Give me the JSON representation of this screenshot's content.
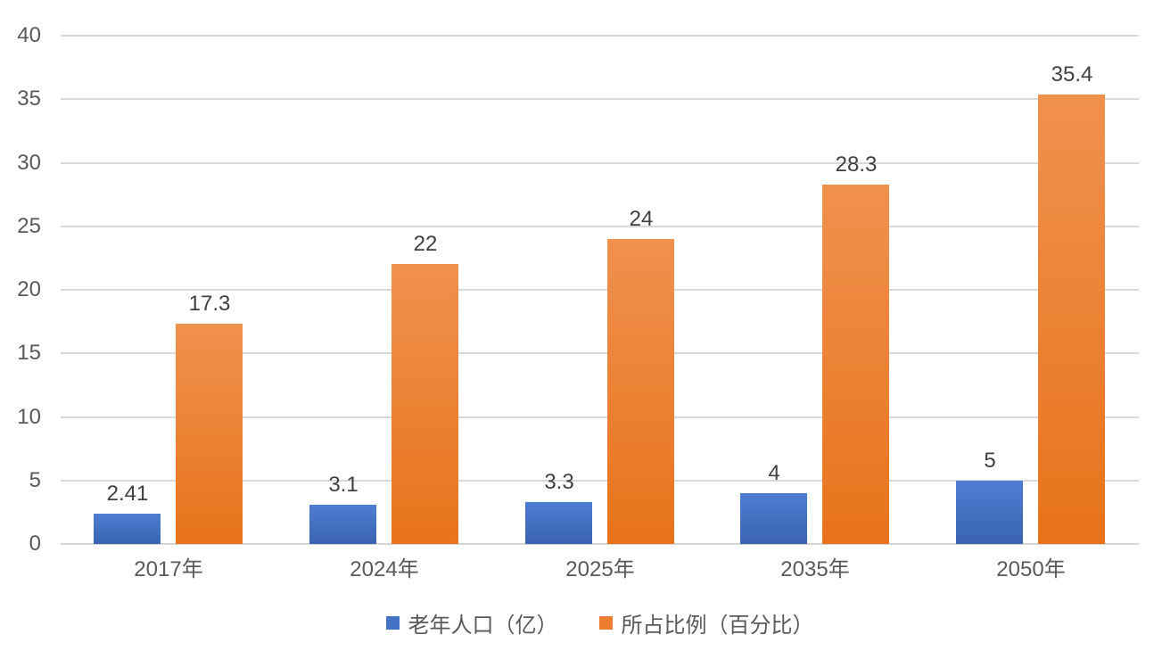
{
  "chart_data": {
    "type": "bar",
    "title": "",
    "xlabel": "",
    "ylabel": "",
    "categories": [
      "2017年",
      "2024年",
      "2025年",
      "2035年",
      "2050年"
    ],
    "series": [
      {
        "name": "老年人口（亿）",
        "color": "#4472C4",
        "gradient_top": "#4e7dd1",
        "gradient_bottom": "#3a63b2",
        "values": [
          2.41,
          3.1,
          3.3,
          4,
          5
        ],
        "data_labels": [
          "2.41",
          "3.1",
          "3.3",
          "4",
          "5"
        ]
      },
      {
        "name": "所占比例（百分比）",
        "color": "#ED7D31",
        "gradient_top": "#f0914e",
        "gradient_bottom": "#e8731b",
        "values": [
          17.3,
          22,
          24,
          28.3,
          35.4
        ],
        "data_labels": [
          "17.3",
          "22",
          "24",
          "28.3",
          "35.4"
        ]
      }
    ],
    "ylim": [
      0,
      40
    ],
    "yticks": [
      0,
      5,
      10,
      15,
      20,
      25,
      30,
      35,
      40
    ],
    "ytick_labels": [
      "0",
      "5",
      "10",
      "15",
      "20",
      "25",
      "30",
      "35",
      "40"
    ],
    "grid": true,
    "gridline_color": "#d9d9d9",
    "tick_label_color": "#595959",
    "data_label_color": "#404040",
    "legend_position": "bottom"
  }
}
